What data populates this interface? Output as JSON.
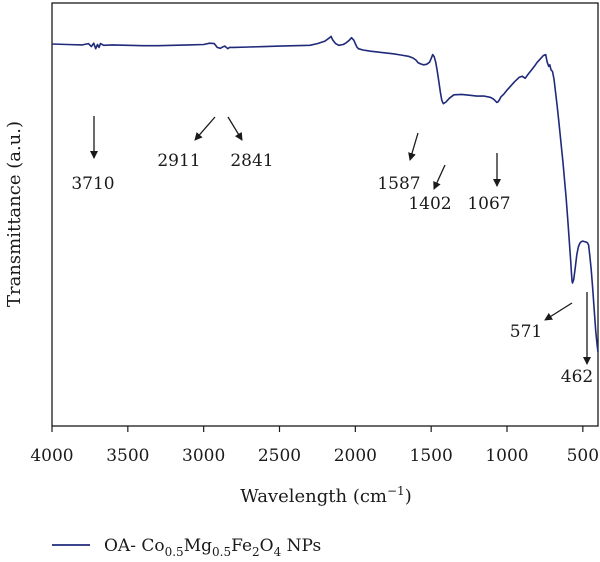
{
  "chart_data": {
    "type": "line",
    "xlabel": "Wavelength (cm",
    "xlabel_sup": "−1",
    "xlabel_close": ")",
    "ylabel": "Transmittance (a.u.)",
    "xlim": [
      4000,
      400
    ],
    "ylim": [
      0,
      100
    ],
    "x_reversed": true,
    "x_ticks": [
      4000,
      3500,
      3000,
      2500,
      2000,
      1500,
      1000,
      500
    ],
    "grid": false,
    "legend_position": "bottom-left",
    "series": [
      {
        "name": "OA- Co0.5Mg0.5Fe2O4 NPs",
        "color": "#1f2a7a",
        "x": [
          4000,
          3900,
          3800,
          3760,
          3740,
          3725,
          3712,
          3700,
          3690,
          3680,
          3660,
          3600,
          3500,
          3400,
          3300,
          3200,
          3100,
          3000,
          2960,
          2930,
          2911,
          2890,
          2870,
          2860,
          2841,
          2830,
          2800,
          2700,
          2600,
          2500,
          2400,
          2300,
          2250,
          2200,
          2170,
          2160,
          2150,
          2130,
          2110,
          2080,
          2060,
          2040,
          2025,
          2010,
          2000,
          1990,
          1980,
          1950,
          1900,
          1850,
          1800,
          1750,
          1700,
          1650,
          1620,
          1600,
          1587,
          1570,
          1550,
          1530,
          1510,
          1500,
          1490,
          1480,
          1470,
          1460,
          1450,
          1440,
          1430,
          1420,
          1402,
          1380,
          1350,
          1300,
          1250,
          1200,
          1150,
          1110,
          1090,
          1075,
          1067,
          1060,
          1050,
          1040,
          1020,
          1000,
          980,
          950,
          920,
          900,
          880,
          860,
          840,
          820,
          800,
          780,
          760,
          745,
          735,
          725,
          718,
          710,
          700,
          690,
          680,
          670,
          660,
          650,
          640,
          630,
          620,
          610,
          600,
          590,
          580,
          575,
          571,
          568,
          560,
          550,
          540,
          530,
          520,
          510,
          500,
          490,
          480,
          470,
          462,
          455,
          445,
          435,
          425,
          415,
          405,
          400
        ],
        "values": [
          90.3,
          90.2,
          90.1,
          90.4,
          89.7,
          90.5,
          89.2,
          90.2,
          89.5,
          90.4,
          90.0,
          90.1,
          90.0,
          89.9,
          89.9,
          90.0,
          90.1,
          90.2,
          90.5,
          90.4,
          89.5,
          89.3,
          89.7,
          89.8,
          89.2,
          89.5,
          89.5,
          89.6,
          89.7,
          89.8,
          89.9,
          90.0,
          90.4,
          91.0,
          91.8,
          92.1,
          91.3,
          90.4,
          90.0,
          90.2,
          90.6,
          91.2,
          91.8,
          91.2,
          90.4,
          89.6,
          89.2,
          88.9,
          88.6,
          88.4,
          88.2,
          88.0,
          87.7,
          87.4,
          87.0,
          86.5,
          85.9,
          85.6,
          85.4,
          85.5,
          86.0,
          86.9,
          87.8,
          87.3,
          86.0,
          84.0,
          81.5,
          79.0,
          77.0,
          76.2,
          76.6,
          77.5,
          78.3,
          78.4,
          78.2,
          78.0,
          78.0,
          77.7,
          77.3,
          76.8,
          76.5,
          76.6,
          77.1,
          77.8,
          78.5,
          79.4,
          80.2,
          81.4,
          82.4,
          82.7,
          82.2,
          83.2,
          84.1,
          85.0,
          86.0,
          86.8,
          87.6,
          87.8,
          86.0,
          85.0,
          85.4,
          84.2,
          83.8,
          82.0,
          79.0,
          76.0,
          72.5,
          69.0,
          65.5,
          62.0,
          58.0,
          54.0,
          49.0,
          44.0,
          39.0,
          36.0,
          34.2,
          33.8,
          34.6,
          37.5,
          40.5,
          42.3,
          43.2,
          43.6,
          43.7,
          43.6,
          43.5,
          43.3,
          42.8,
          40.5,
          37.0,
          32.5,
          27.5,
          22.5,
          19.0,
          17.5
        ]
      }
    ],
    "annotations": [
      {
        "label": "3710"
      },
      {
        "label": "2911"
      },
      {
        "label": "2841"
      },
      {
        "label": "1587"
      },
      {
        "label": "1402"
      },
      {
        "label": "1067"
      },
      {
        "label": "571"
      },
      {
        "label": "462"
      }
    ],
    "legend_parts": [
      "OA- Co",
      "0.5",
      "Mg",
      "0.5",
      "Fe",
      "2",
      "O",
      "4",
      " NPs"
    ]
  }
}
